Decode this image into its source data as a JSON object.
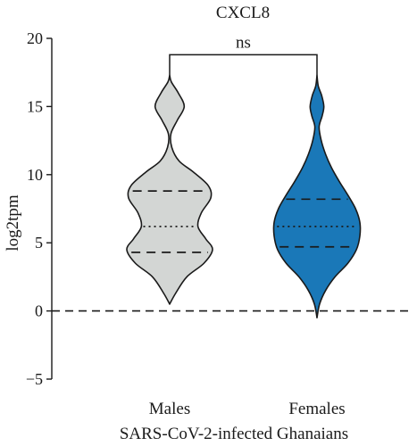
{
  "chart_data": {
    "type": "violin",
    "title": "CXCL8",
    "xlabel": "SARS-CoV-2-infected Ghanaians",
    "ylabel": "log2tpm",
    "ylim": [
      -5,
      20
    ],
    "yticks": [
      -5,
      0,
      5,
      10,
      15,
      20
    ],
    "ytick_labels": [
      "−5",
      "0",
      "5",
      "10",
      "15",
      "20"
    ],
    "reference_line": {
      "y": 0,
      "style": "dashed"
    },
    "significance": {
      "label": "ns",
      "between": [
        "Males",
        "Females"
      ]
    },
    "groups": [
      {
        "name": "Males",
        "color": "#d3d6d4",
        "quartiles": {
          "q1": 4.3,
          "median": 6.2,
          "q3": 8.8
        },
        "range": [
          0.5,
          17.3
        ],
        "density": [
          [
            0.5,
            0.0
          ],
          [
            1.3,
            0.14
          ],
          [
            2.5,
            0.4
          ],
          [
            3.5,
            0.8
          ],
          [
            4.5,
            1.0
          ],
          [
            5.3,
            0.84
          ],
          [
            6.2,
            0.66
          ],
          [
            7.2,
            0.74
          ],
          [
            8.3,
            0.96
          ],
          [
            9.2,
            0.9
          ],
          [
            10.2,
            0.55
          ],
          [
            11.0,
            0.22
          ],
          [
            12.0,
            0.05
          ],
          [
            13.0,
            0.03
          ],
          [
            14.0,
            0.18
          ],
          [
            15.0,
            0.34
          ],
          [
            16.0,
            0.2
          ],
          [
            16.8,
            0.04
          ],
          [
            17.3,
            0.0
          ]
        ]
      },
      {
        "name": "Females",
        "color": "#1a78b8",
        "quartiles": {
          "q1": 4.7,
          "median": 6.2,
          "q3": 8.2
        },
        "range": [
          -0.5,
          17.3
        ],
        "density": [
          [
            -0.5,
            0.0
          ],
          [
            0.5,
            0.06
          ],
          [
            1.5,
            0.2
          ],
          [
            2.5,
            0.42
          ],
          [
            3.5,
            0.72
          ],
          [
            4.5,
            0.92
          ],
          [
            5.5,
            1.0
          ],
          [
            6.5,
            1.0
          ],
          [
            7.5,
            0.9
          ],
          [
            8.5,
            0.72
          ],
          [
            9.5,
            0.52
          ],
          [
            10.5,
            0.34
          ],
          [
            11.5,
            0.2
          ],
          [
            12.5,
            0.1
          ],
          [
            13.5,
            0.05
          ],
          [
            14.3,
            0.12
          ],
          [
            15.0,
            0.16
          ],
          [
            15.8,
            0.11
          ],
          [
            16.5,
            0.03
          ],
          [
            17.3,
            0.0
          ]
        ]
      }
    ]
  }
}
